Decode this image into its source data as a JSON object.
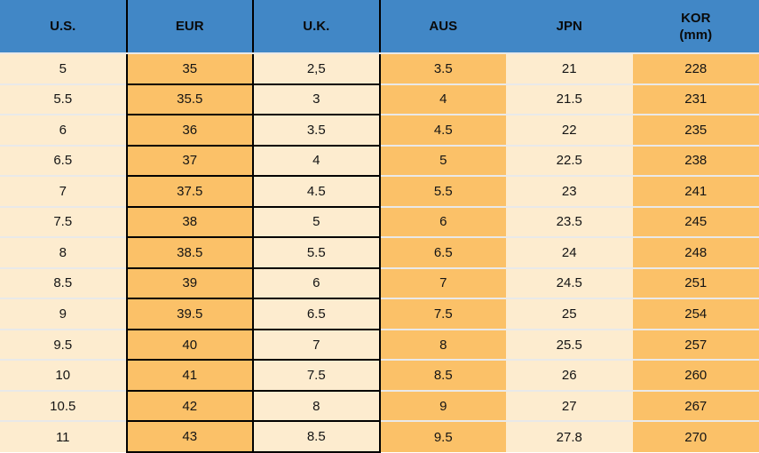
{
  "chart_data": {
    "type": "table",
    "columns": [
      {
        "label": "U.S."
      },
      {
        "label": "EUR"
      },
      {
        "label": "U.K."
      },
      {
        "label": "AUS"
      },
      {
        "label": "JPN"
      },
      {
        "label": "KOR",
        "sublabel": "(mm)"
      }
    ],
    "rows": [
      [
        "5",
        "35",
        "2,5",
        "3.5",
        "21",
        "228"
      ],
      [
        "5.5",
        "35.5",
        "3",
        "4",
        "21.5",
        "231"
      ],
      [
        "6",
        "36",
        "3.5",
        "4.5",
        "22",
        "235"
      ],
      [
        "6.5",
        "37",
        "4",
        "5",
        "22.5",
        "238"
      ],
      [
        "7",
        "37.5",
        "4.5",
        "5.5",
        "23",
        "241"
      ],
      [
        "7.5",
        "38",
        "5",
        "6",
        "23.5",
        "245"
      ],
      [
        "8",
        "38.5",
        "5.5",
        "6.5",
        "24",
        "248"
      ],
      [
        "8.5",
        "39",
        "6",
        "7",
        "24.5",
        "251"
      ],
      [
        "9",
        "39.5",
        "6.5",
        "7.5",
        "25",
        "254"
      ],
      [
        "9.5",
        "40",
        "7",
        "8",
        "25.5",
        "257"
      ],
      [
        "10",
        "41",
        "7.5",
        "8.5",
        "26",
        "260"
      ],
      [
        "10.5",
        "42",
        "8",
        "9",
        "27",
        "267"
      ],
      [
        "11",
        "43",
        "8.5",
        "9.5",
        "27.8",
        "270"
      ]
    ]
  },
  "colors": {
    "header_blue": "#4187c6",
    "orange": "#fbc168",
    "cream": "#fdeccf",
    "grid_black": "#000000",
    "separator": "#e9e9e9",
    "header_text": "#0a0a0a",
    "body_text": "#141414"
  }
}
